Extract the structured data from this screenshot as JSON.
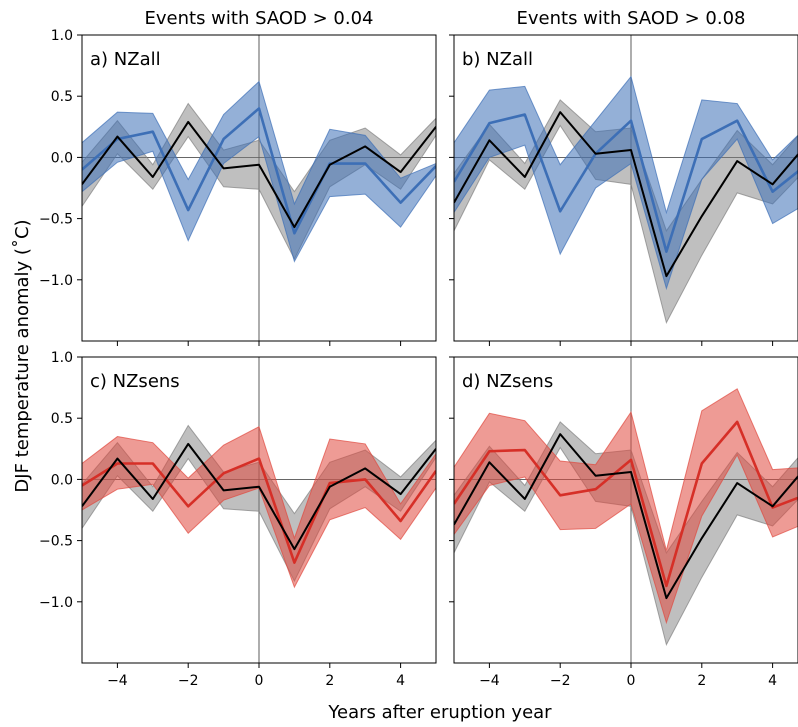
{
  "figure": {
    "ylabel": "DJF temperature anomaly (˚C)",
    "xlabel": "Years after eruption year",
    "column_titles": [
      "Events with SAOD > 0.04",
      "Events with SAOD > 0.08"
    ]
  },
  "colors": {
    "blue": "#3d6fb6",
    "blue_fill": "#3d6fb6",
    "red": "#d62f27",
    "red_fill": "#e0483e",
    "black": "#000000",
    "gray_fill": "#808080"
  },
  "chart_data": [
    {
      "type": "line",
      "panel_label": "a) NZall",
      "x": [
        -5,
        -4,
        -3,
        -2,
        -1,
        0,
        1,
        2,
        3,
        4,
        5
      ],
      "xlim": [
        -5,
        5
      ],
      "ylim": [
        -1.5,
        1.0
      ],
      "xticks": [
        -4,
        -2,
        0,
        2,
        4
      ],
      "yticks": [
        -1.0,
        -0.5,
        0.0,
        0.5,
        1.0
      ],
      "series": [
        {
          "color_key": "blue",
          "values": [
            -0.1,
            0.15,
            0.21,
            -0.43,
            0.15,
            0.4,
            -0.62,
            -0.05,
            -0.05,
            -0.37,
            -0.07
          ],
          "lower": [
            -0.28,
            -0.04,
            0.05,
            -0.68,
            -0.05,
            0.17,
            -0.85,
            -0.32,
            -0.3,
            -0.57,
            -0.15
          ],
          "upper": [
            0.12,
            0.37,
            0.36,
            -0.18,
            0.35,
            0.62,
            -0.38,
            0.23,
            0.18,
            -0.17,
            -0.05
          ]
        },
        {
          "color_key": "black",
          "values": [
            -0.22,
            0.17,
            -0.16,
            0.29,
            -0.09,
            -0.06,
            -0.57,
            -0.06,
            0.09,
            -0.12,
            0.25
          ],
          "lower": [
            -0.4,
            0.03,
            -0.26,
            0.17,
            -0.24,
            -0.26,
            -0.83,
            -0.24,
            -0.06,
            -0.26,
            0.18
          ],
          "upper": [
            -0.04,
            0.3,
            -0.06,
            0.44,
            0.06,
            0.14,
            -0.28,
            0.14,
            0.24,
            0.02,
            0.32
          ]
        }
      ]
    },
    {
      "type": "line",
      "panel_label": "b) NZall",
      "x": [
        -5,
        -4,
        -3,
        -2,
        -1,
        0,
        1,
        2,
        3,
        4,
        5
      ],
      "xlim": [
        -5,
        5
      ],
      "ylim": [
        -1.5,
        1.0
      ],
      "xticks": [
        -4,
        -2,
        0,
        2,
        4
      ],
      "yticks": [
        -1.0,
        -0.5,
        0.0,
        0.5,
        1.0
      ],
      "series": [
        {
          "color_key": "blue",
          "values": [
            -0.2,
            0.28,
            0.35,
            -0.44,
            0.03,
            0.3,
            -0.77,
            0.15,
            0.3,
            -0.28,
            -0.05
          ],
          "lower": [
            -0.45,
            0.0,
            0.1,
            -0.79,
            -0.25,
            -0.05,
            -1.07,
            -0.18,
            0.15,
            -0.54,
            -0.37
          ],
          "upper": [
            0.12,
            0.55,
            0.58,
            -0.06,
            0.3,
            0.66,
            -0.45,
            0.47,
            0.44,
            -0.02,
            0.26
          ]
        },
        {
          "color_key": "black",
          "values": [
            -0.37,
            0.14,
            -0.16,
            0.37,
            0.03,
            0.06,
            -0.97,
            -0.48,
            -0.03,
            -0.22,
            0.12
          ],
          "lower": [
            -0.6,
            -0.02,
            -0.26,
            0.26,
            -0.18,
            -0.22,
            -1.35,
            -0.8,
            -0.29,
            -0.38,
            -0.08
          ],
          "upper": [
            -0.13,
            0.27,
            -0.05,
            0.47,
            0.21,
            0.24,
            -0.6,
            -0.18,
            0.22,
            -0.06,
            0.27
          ]
        }
      ]
    },
    {
      "type": "line",
      "panel_label": "c) NZsens",
      "x": [
        -5,
        -4,
        -3,
        -2,
        -1,
        0,
        1,
        2,
        3,
        4,
        5
      ],
      "xlim": [
        -5,
        5
      ],
      "ylim": [
        -1.5,
        1.0
      ],
      "xticks": [
        -4,
        -2,
        0,
        2,
        4
      ],
      "yticks": [
        -1.0,
        -0.5,
        0.0,
        0.5,
        1.0
      ],
      "series": [
        {
          "color_key": "red",
          "values": [
            -0.05,
            0.13,
            0.13,
            -0.22,
            0.05,
            0.17,
            -0.68,
            -0.03,
            0.0,
            -0.34,
            0.07
          ],
          "lower": [
            -0.25,
            -0.08,
            -0.04,
            -0.44,
            -0.17,
            -0.07,
            -0.88,
            -0.33,
            -0.23,
            -0.49,
            -0.07
          ],
          "upper": [
            0.13,
            0.35,
            0.3,
            0.01,
            0.28,
            0.43,
            -0.48,
            0.33,
            0.29,
            -0.2,
            0.21
          ]
        },
        {
          "color_key": "black",
          "values": [
            -0.22,
            0.17,
            -0.16,
            0.29,
            -0.09,
            -0.06,
            -0.57,
            -0.06,
            0.09,
            -0.12,
            0.25
          ],
          "lower": [
            -0.4,
            0.03,
            -0.26,
            0.17,
            -0.24,
            -0.26,
            -0.83,
            -0.24,
            -0.06,
            -0.26,
            0.18
          ],
          "upper": [
            -0.04,
            0.3,
            -0.06,
            0.44,
            0.06,
            0.14,
            -0.28,
            0.14,
            0.24,
            0.02,
            0.32
          ]
        }
      ]
    },
    {
      "type": "line",
      "panel_label": "d) NZsens",
      "x": [
        -5,
        -4,
        -3,
        -2,
        -1,
        0,
        1,
        2,
        3,
        4,
        5
      ],
      "xlim": [
        -5,
        5
      ],
      "ylim": [
        -1.5,
        1.0
      ],
      "xticks": [
        -4,
        -2,
        0,
        2,
        4
      ],
      "yticks": [
        -1.0,
        -0.5,
        0.0,
        0.5,
        1.0
      ],
      "series": [
        {
          "color_key": "red",
          "values": [
            -0.2,
            0.23,
            0.24,
            -0.13,
            -0.08,
            0.16,
            -0.87,
            0.13,
            0.47,
            -0.23,
            -0.12
          ],
          "lower": [
            -0.45,
            -0.05,
            0.02,
            -0.41,
            -0.4,
            -0.2,
            -1.17,
            -0.3,
            0.2,
            -0.47,
            -0.35
          ],
          "upper": [
            0.1,
            0.54,
            0.48,
            0.15,
            0.12,
            0.55,
            -0.58,
            0.56,
            0.74,
            0.08,
            0.1
          ]
        },
        {
          "color_key": "black",
          "values": [
            -0.37,
            0.14,
            -0.16,
            0.37,
            0.03,
            0.06,
            -0.97,
            -0.48,
            -0.03,
            -0.22,
            0.12
          ],
          "lower": [
            -0.6,
            -0.02,
            -0.26,
            0.26,
            -0.18,
            -0.22,
            -1.35,
            -0.8,
            -0.29,
            -0.38,
            -0.08
          ],
          "upper": [
            -0.13,
            0.27,
            -0.05,
            0.47,
            0.21,
            0.24,
            -0.6,
            -0.18,
            0.22,
            -0.06,
            0.27
          ]
        }
      ]
    }
  ]
}
